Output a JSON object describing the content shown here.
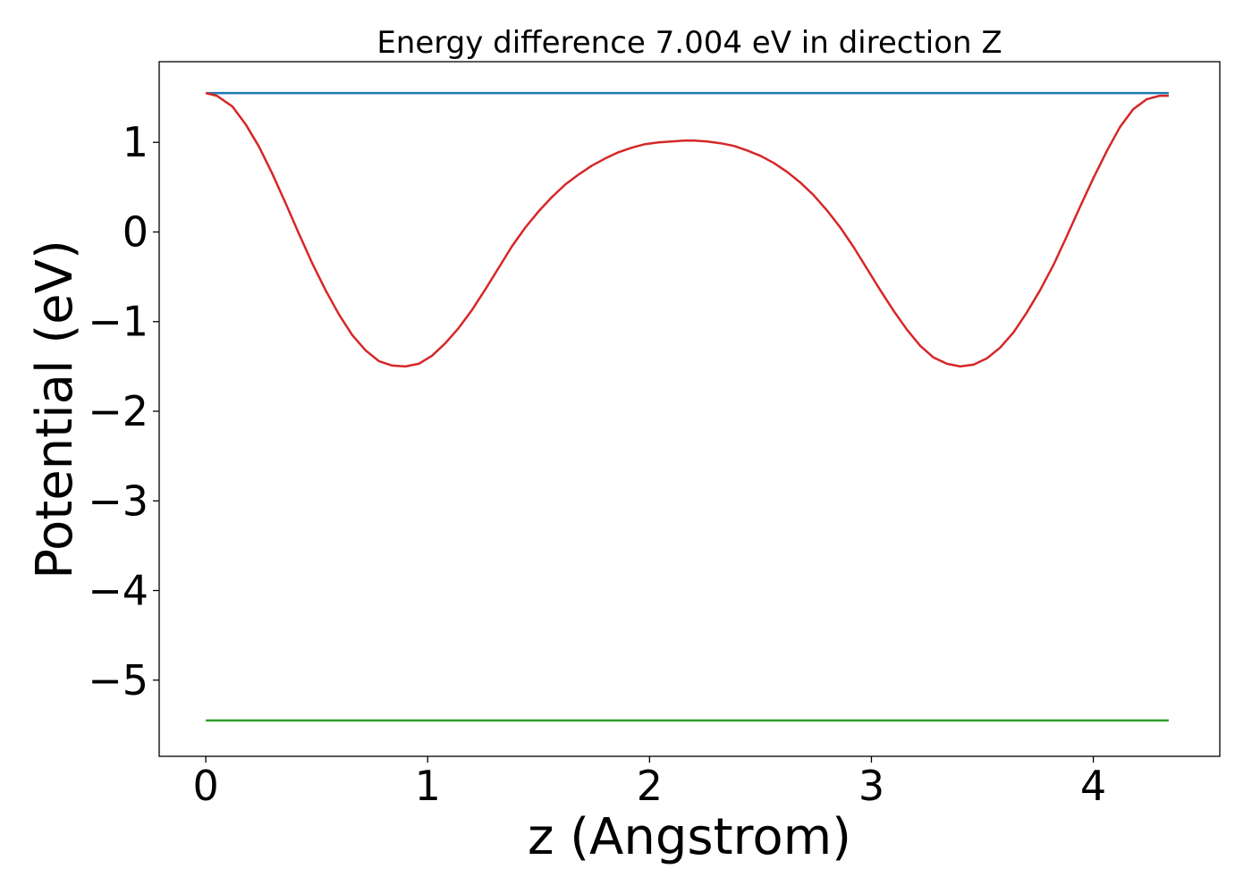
{
  "chart_data": {
    "type": "line",
    "title": "Energy difference 7.004 eV in direction Z",
    "xlabel": "z (Angstrom)",
    "ylabel": "Potential (eV)",
    "xlim": [
      -0.21,
      4.57
    ],
    "ylim": [
      -5.85,
      1.9
    ],
    "xticks": [
      0,
      1,
      2,
      3,
      4
    ],
    "yticks": [
      1,
      0,
      -1,
      -2,
      -3,
      -4,
      -5
    ],
    "xtick_labels": [
      "0",
      "1",
      "2",
      "3",
      "4"
    ],
    "ytick_labels": [
      "1",
      "0",
      "−1",
      "−2",
      "−3",
      "−4",
      "−5"
    ],
    "grid": false,
    "legend": "none",
    "series": [
      {
        "color": "#1f77b4",
        "x": [
          0,
          4.34
        ],
        "y": [
          1.55,
          1.55
        ]
      },
      {
        "color": "#d62728",
        "x": [
          0,
          0.05,
          0.12,
          0.18,
          0.24,
          0.3,
          0.36,
          0.42,
          0.48,
          0.54,
          0.6,
          0.66,
          0.72,
          0.78,
          0.84,
          0.9,
          0.96,
          1.02,
          1.08,
          1.14,
          1.2,
          1.26,
          1.32,
          1.38,
          1.44,
          1.5,
          1.56,
          1.62,
          1.68,
          1.74,
          1.8,
          1.86,
          1.92,
          1.98,
          2.04,
          2.1,
          2.16,
          2.2,
          2.26,
          2.32,
          2.38,
          2.44,
          2.5,
          2.56,
          2.62,
          2.68,
          2.74,
          2.8,
          2.86,
          2.92,
          2.98,
          3.04,
          3.1,
          3.16,
          3.22,
          3.28,
          3.34,
          3.4,
          3.46,
          3.52,
          3.58,
          3.64,
          3.7,
          3.76,
          3.82,
          3.88,
          3.94,
          4.0,
          4.06,
          4.12,
          4.18,
          4.24,
          4.3,
          4.34
        ],
        "y": [
          1.55,
          1.52,
          1.4,
          1.2,
          0.95,
          0.65,
          0.32,
          -0.02,
          -0.35,
          -0.65,
          -0.92,
          -1.15,
          -1.32,
          -1.44,
          -1.49,
          -1.5,
          -1.47,
          -1.38,
          -1.24,
          -1.07,
          -0.87,
          -0.64,
          -0.4,
          -0.16,
          0.05,
          0.23,
          0.39,
          0.53,
          0.64,
          0.74,
          0.82,
          0.89,
          0.94,
          0.98,
          1.0,
          1.01,
          1.02,
          1.02,
          1.01,
          0.99,
          0.96,
          0.91,
          0.85,
          0.77,
          0.67,
          0.55,
          0.41,
          0.24,
          0.05,
          -0.17,
          -0.41,
          -0.65,
          -0.88,
          -1.09,
          -1.27,
          -1.4,
          -1.47,
          -1.5,
          -1.48,
          -1.41,
          -1.29,
          -1.12,
          -0.9,
          -0.65,
          -0.37,
          -0.05,
          0.28,
          0.6,
          0.9,
          1.17,
          1.37,
          1.48,
          1.52,
          1.52
        ]
      },
      {
        "color": "#2ca02c",
        "x": [
          0,
          4.34
        ],
        "y": [
          -5.45,
          -5.45
        ]
      }
    ]
  }
}
